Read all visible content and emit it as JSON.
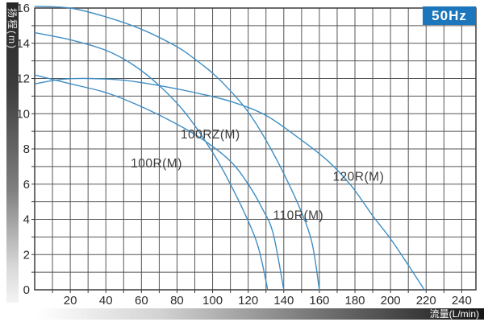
{
  "badge": {
    "text": "50Hz",
    "color": "#1b76bc"
  },
  "chart_data": {
    "type": "line",
    "title": "",
    "xlabel": "流量(L/min)",
    "ylabel": "扬程(m)",
    "xlim": [
      0,
      248
    ],
    "ylim": [
      0,
      16
    ],
    "x_grid_step": 10,
    "y_grid_step": 1,
    "grid": true,
    "legend_position": "none",
    "curve_color": "#3f8ec5",
    "grid_color": "#565656",
    "border_color": "#3c3c3c",
    "tick_label_color": "#2b2b2b",
    "curve_label_color": "#3d3d3d",
    "x_tick_labels": [
      20,
      40,
      60,
      80,
      100,
      120,
      140,
      160,
      180,
      200,
      220,
      240
    ],
    "y_tick_labels": [
      0,
      2,
      4,
      6,
      8,
      10,
      12,
      14,
      16
    ],
    "series": [
      {
        "name": "110R(M)",
        "points": [
          [
            0,
            16.1
          ],
          [
            20,
            16.0
          ],
          [
            40,
            15.5
          ],
          [
            60,
            14.8
          ],
          [
            80,
            13.8
          ],
          [
            90,
            13.1
          ],
          [
            100,
            12.3
          ],
          [
            110,
            11.3
          ],
          [
            120,
            10.1
          ],
          [
            130,
            8.5
          ],
          [
            140,
            6.6
          ],
          [
            150,
            4.4
          ],
          [
            156,
            2.6
          ],
          [
            160,
            0
          ]
        ]
      },
      {
        "name": "100RZ(M)",
        "points": [
          [
            0,
            14.6
          ],
          [
            20,
            14.2
          ],
          [
            40,
            13.6
          ],
          [
            55,
            12.8
          ],
          [
            70,
            11.6
          ],
          [
            85,
            10.0
          ],
          [
            100,
            7.8
          ],
          [
            110,
            6.0
          ],
          [
            120,
            3.9
          ],
          [
            126,
            2.3
          ],
          [
            131,
            0
          ]
        ]
      },
      {
        "name": "100R(M)",
        "points": [
          [
            0,
            12.2
          ],
          [
            20,
            11.7
          ],
          [
            40,
            11.2
          ],
          [
            60,
            10.4
          ],
          [
            80,
            9.4
          ],
          [
            95,
            8.5
          ],
          [
            110,
            7.3
          ],
          [
            120,
            6.0
          ],
          [
            128,
            4.6
          ],
          [
            134,
            3.2
          ],
          [
            140,
            0
          ]
        ]
      },
      {
        "name": "120R(M)",
        "points": [
          [
            0,
            11.7
          ],
          [
            15,
            11.95
          ],
          [
            30,
            12.0
          ],
          [
            50,
            11.9
          ],
          [
            70,
            11.6
          ],
          [
            90,
            11.2
          ],
          [
            110,
            10.7
          ],
          [
            130,
            9.9
          ],
          [
            150,
            8.5
          ],
          [
            165,
            7.3
          ],
          [
            178,
            5.9
          ],
          [
            190,
            4.2
          ],
          [
            200,
            2.9
          ],
          [
            210,
            1.4
          ],
          [
            219,
            0
          ]
        ]
      }
    ],
    "curve_labels": [
      {
        "text": "100RZ(M)",
        "x": 82,
        "y": 8.6
      },
      {
        "text": "100R(M)",
        "x": 54,
        "y": 6.95
      },
      {
        "text": "110R(M)",
        "x": 134,
        "y": 4.0
      },
      {
        "text": "120R(M)",
        "x": 167.5,
        "y": 6.2
      }
    ]
  }
}
